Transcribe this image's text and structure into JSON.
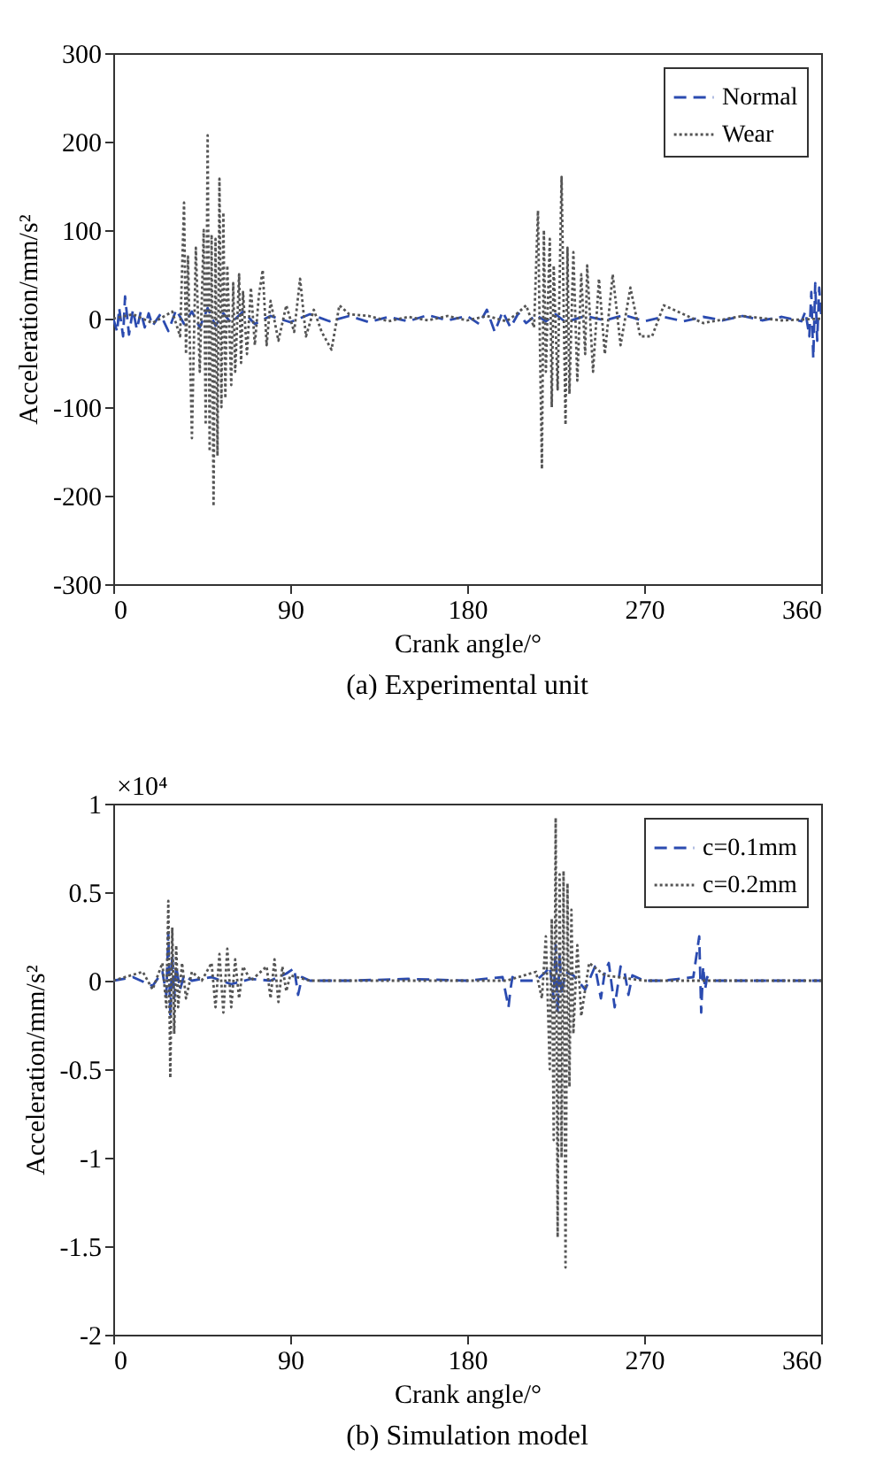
{
  "chart_data": [
    {
      "type": "line",
      "title": "(a) Experimental unit",
      "xlabel": "Crank angle/°",
      "ylabel": "Acceleration/mm/s²",
      "xlim": [
        0,
        360
      ],
      "xticks": [
        0,
        90,
        180,
        270,
        360
      ],
      "ylim": [
        -300,
        300
      ],
      "yticks": [
        -300,
        -200,
        -100,
        0,
        100,
        200,
        300
      ],
      "grid": false,
      "legend": "top right",
      "series": [
        {
          "name": "Normal",
          "color": "#2b4bb0",
          "line_style": "dashed",
          "x": [
            0,
            2,
            3,
            5,
            6,
            8,
            10,
            12,
            14,
            16,
            18,
            20,
            24,
            28,
            32,
            36,
            40,
            44,
            48,
            52,
            56,
            60,
            66,
            72,
            80,
            90,
            100,
            110,
            120,
            130,
            140,
            150,
            160,
            170,
            180,
            186,
            190,
            194,
            198,
            202,
            206,
            210,
            215,
            220,
            225,
            230,
            240,
            250,
            260,
            270,
            280,
            290,
            300,
            310,
            320,
            330,
            340,
            350,
            352,
            354,
            355,
            356,
            357,
            358,
            359,
            360
          ],
          "values": [
            0,
            -15,
            12,
            -20,
            25,
            -18,
            10,
            -12,
            8,
            -10,
            6,
            -8,
            5,
            -14,
            10,
            -6,
            8,
            -10,
            12,
            -8,
            6,
            -5,
            8,
            -6,
            3,
            -4,
            5,
            -3,
            3,
            -4,
            2,
            -3,
            4,
            -2,
            3,
            -6,
            10,
            -15,
            8,
            -10,
            6,
            -5,
            4,
            -3,
            5,
            -4,
            3,
            -2,
            4,
            -3,
            2,
            -3,
            2,
            -2,
            3,
            -2,
            2,
            -3,
            8,
            -20,
            30,
            -45,
            40,
            -25,
            35,
            5
          ]
        },
        {
          "name": "Wear",
          "color": "#555555",
          "line_style": "dotted",
          "x": [
            0,
            10,
            20,
            30,
            34,
            36,
            37,
            38,
            40,
            42,
            44,
            46,
            47,
            48,
            49,
            50,
            51,
            52,
            53,
            54,
            55,
            56,
            57,
            58,
            60,
            61,
            62,
            64,
            65,
            66,
            68,
            70,
            72,
            74,
            76,
            78,
            80,
            84,
            88,
            92,
            95,
            98,
            102,
            106,
            111,
            115,
            120,
            130,
            140,
            150,
            160,
            170,
            180,
            190,
            200,
            205,
            210,
            214,
            216,
            217,
            218,
            219,
            220,
            222,
            223,
            224,
            226,
            228,
            230,
            231,
            232,
            234,
            236,
            238,
            240,
            241,
            244,
            247,
            250,
            254,
            258,
            263,
            268,
            274,
            280,
            290,
            300,
            320,
            340,
            360
          ],
          "values": [
            0,
            5,
            -5,
            8,
            -20,
            131,
            -40,
            70,
            -135,
            80,
            -60,
            100,
            -120,
            207,
            -150,
            95,
            -212,
            90,
            -155,
            158,
            -100,
            120,
            -90,
            60,
            -75,
            40,
            -60,
            50,
            -50,
            30,
            -40,
            35,
            -30,
            25,
            55,
            -30,
            20,
            -25,
            15,
            -15,
            45,
            -20,
            10,
            -15,
            -35,
            15,
            5,
            3,
            -3,
            2,
            -2,
            3,
            -2,
            3,
            -3,
            5,
            15,
            -10,
            122,
            -30,
            -170,
            100,
            -60,
            90,
            -100,
            60,
            -80,
            160,
            -120,
            80,
            -85,
            75,
            -70,
            50,
            -40,
            60,
            -60,
            45,
            -40,
            50,
            -30,
            35,
            -20,
            -20,
            15,
            5,
            -5,
            3,
            -2,
            0
          ]
        }
      ]
    },
    {
      "type": "line",
      "title": "(b) Simulation model",
      "xlabel": "Crank angle/°",
      "ylabel": "Acceleration/mm/s²",
      "annotations": [
        "×10⁴"
      ],
      "xlim": [
        0,
        360
      ],
      "xticks": [
        0,
        90,
        180,
        270,
        360
      ],
      "ylim": [
        -2,
        1
      ],
      "yticks": [
        -2,
        -1.5,
        -1,
        -0.5,
        0,
        0.5,
        1
      ],
      "grid": false,
      "legend": "top right",
      "series": [
        {
          "name": "c=0.1mm",
          "color": "#2b4bb0",
          "line_style": "dashed",
          "x": [
            0,
            10,
            20,
            25,
            27,
            28,
            29,
            30,
            31,
            32,
            34,
            36,
            40,
            50,
            60,
            70,
            80,
            88,
            92,
            94,
            96,
            100,
            120,
            150,
            180,
            198,
            201,
            202,
            203,
            206,
            215,
            220,
            222,
            224,
            225,
            226,
            227,
            228,
            230,
            234,
            240,
            245,
            248,
            250,
            252,
            255,
            258,
            260,
            262,
            264,
            270,
            280,
            295,
            298,
            299,
            300,
            301,
            302,
            305,
            320,
            340,
            360
          ],
          "values": [
            0,
            0.02,
            -0.03,
            0.05,
            -0.08,
            0.27,
            -0.2,
            0.15,
            -0.1,
            0.08,
            -0.05,
            0.03,
            0,
            0.02,
            -0.02,
            0.01,
            0,
            0.04,
            0.07,
            -0.08,
            0.02,
            0,
            0,
            0.01,
            0,
            0.02,
            -0.15,
            -0.05,
            0.02,
            0,
            0,
            0.05,
            0.08,
            -0.1,
            0.2,
            -0.18,
            0.15,
            -0.08,
            0.05,
            0.03,
            -0.05,
            0.08,
            -0.1,
            0.05,
            0.1,
            -0.15,
            0.08,
            0.05,
            -0.08,
            0.03,
            0,
            0,
            0.02,
            0.25,
            -0.18,
            0.08,
            -0.05,
            0.02,
            0,
            0,
            0,
            0
          ]
        },
        {
          "name": "c=0.2mm",
          "color": "#555555",
          "line_style": "dotted",
          "x": [
            0,
            15,
            20,
            25,
            27,
            28,
            29,
            30,
            31,
            32,
            33,
            35,
            37,
            40,
            45,
            50,
            52,
            54,
            56,
            58,
            60,
            62,
            64,
            66,
            70,
            78,
            80,
            82,
            84,
            86,
            88,
            90,
            100,
            150,
            200,
            215,
            218,
            220,
            222,
            223,
            224,
            225,
            226,
            227,
            228,
            229,
            230,
            231,
            232,
            233,
            234,
            236,
            238,
            242,
            250,
            270,
            300,
            360
          ],
          "values": [
            0,
            0.05,
            -0.05,
            0.1,
            -0.15,
            0.45,
            -0.55,
            0.3,
            -0.3,
            0.2,
            -0.15,
            0.1,
            -0.1,
            0.05,
            0,
            0.1,
            -0.15,
            0.15,
            -0.18,
            0.18,
            -0.15,
            0.12,
            -0.1,
            0.08,
            0,
            0.08,
            -0.1,
            0.12,
            -0.12,
            0.08,
            -0.06,
            0.03,
            0,
            0,
            0,
            0.05,
            -0.1,
            0.25,
            -0.5,
            0.35,
            -0.9,
            0.92,
            -1.45,
            0.6,
            -1.0,
            0.62,
            -1.62,
            0.55,
            -0.6,
            0.4,
            -0.3,
            0.2,
            -0.2,
            0.1,
            0.03,
            0,
            0,
            0
          ]
        }
      ]
    }
  ]
}
